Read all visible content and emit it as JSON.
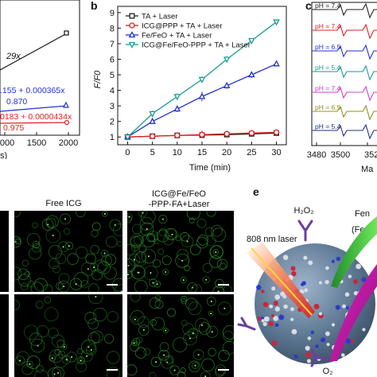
{
  "panel_labels": {
    "b": "b",
    "c": "c",
    "e": "e"
  },
  "panel_a_partial": {
    "slope_text": "29x",
    "eq_blue": ".155 + 0.000365x",
    "r2_blue": "0.870",
    "eq_red": "0183 + 0.0000434x",
    "r2_red": "0.975",
    "x_ticks": [
      "1000",
      "1500",
      "2000"
    ],
    "x_unit_fragment": "s)",
    "colors": {
      "black": "#111111",
      "blue": "#2233cc",
      "red": "#dd2222"
    }
  },
  "chart_data": {
    "type": "line",
    "xlabel": "Time (min)",
    "ylabel": "F/F0",
    "xlim": [
      -2,
      32
    ],
    "ylim": [
      0.5,
      9.4
    ],
    "x_ticks": [
      0,
      5,
      10,
      15,
      20,
      25,
      30
    ],
    "y_ticks": [
      1,
      2,
      3,
      4,
      5,
      6,
      7,
      8,
      9
    ],
    "x": [
      0,
      5,
      10,
      15,
      20,
      25,
      30
    ],
    "series": [
      {
        "name": "TA + Laser",
        "color": "#222222",
        "marker": "square",
        "values": [
          1.0,
          1.05,
          1.1,
          1.12,
          1.15,
          1.2,
          1.25
        ],
        "err": [
          0.05,
          0.05,
          0.05,
          0.05,
          0.05,
          0.05,
          0.05
        ]
      },
      {
        "name": "ICG@PPP + TA + Laser",
        "color": "#e02020",
        "marker": "circle",
        "values": [
          1.0,
          1.05,
          1.1,
          1.15,
          1.2,
          1.25,
          1.3
        ],
        "err": [
          0.05,
          0.1,
          0.2,
          0.25,
          0.2,
          0.15,
          0.1
        ]
      },
      {
        "name": "Fe/FeO + TA + Laser",
        "color": "#2030d0",
        "marker": "triangle",
        "values": [
          1.0,
          2.0,
          2.8,
          3.6,
          4.3,
          5.0,
          5.7
        ],
        "err": [
          0.05,
          0.15,
          0.2,
          0.3,
          0.2,
          0.2,
          0.15
        ]
      },
      {
        "name": "ICG@Fe/FeO-PPP + TA + Laser",
        "color": "#1a9a94",
        "marker": "tri-down",
        "values": [
          1.0,
          2.5,
          3.6,
          4.7,
          6.0,
          7.2,
          8.4
        ],
        "err": [
          0.05,
          0.2,
          0.2,
          0.2,
          0.2,
          0.15,
          0.1
        ]
      }
    ]
  },
  "panel_c_partial": {
    "x_ticks": [
      "3480",
      "3500",
      "352"
    ],
    "x_label_fragment": "Ma",
    "spectra": [
      {
        "label": "pH = 7.4",
        "color": "#222222"
      },
      {
        "label": "pH = 7.4",
        "color": "#e02020"
      },
      {
        "label": "pH = 6.5",
        "color": "#2030d0"
      },
      {
        "label": "pH = 5.4",
        "color": "#1a9a94"
      },
      {
        "label": "pH = 7.4",
        "color": "#d040c0"
      },
      {
        "label": "pH = 6.5",
        "color": "#909020"
      },
      {
        "label": "pH = 5.4",
        "color": "#203080"
      }
    ]
  },
  "panel_d_partial": {
    "col1_title": "Free ICG",
    "col2_title_line1": "ICG@Fe/FeO",
    "col2_title_line2": "-PPP-FA+Laser"
  },
  "panel_e_partial": {
    "h2o2_label": "H₂O₂",
    "laser_label": "808 nm laser",
    "fenton_fragment": "Fen",
    "fe_fragment": "(Fe",
    "o2_label": "O₂"
  }
}
